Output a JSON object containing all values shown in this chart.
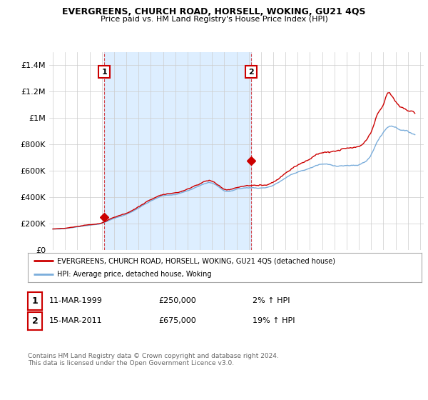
{
  "title": "EVERGREENS, CHURCH ROAD, HORSELL, WOKING, GU21 4QS",
  "subtitle": "Price paid vs. HM Land Registry's House Price Index (HPI)",
  "legend_line1": "EVERGREENS, CHURCH ROAD, HORSELL, WOKING, GU21 4QS (detached house)",
  "legend_line2": "HPI: Average price, detached house, Woking",
  "annotation1_date": "11-MAR-1999",
  "annotation1_price": "£250,000",
  "annotation1_hpi": "2% ↑ HPI",
  "annotation2_date": "15-MAR-2011",
  "annotation2_price": "£675,000",
  "annotation2_hpi": "19% ↑ HPI",
  "footer": "Contains HM Land Registry data © Crown copyright and database right 2024.\nThis data is licensed under the Open Government Licence v3.0.",
  "red_color": "#cc0000",
  "blue_color": "#7aaddb",
  "shade_color": "#ddeeff",
  "grid_color": "#cccccc",
  "background_color": "#ffffff",
  "plot_bg_color": "#ffffff",
  "ylim": [
    0,
    1500000
  ],
  "yticks": [
    0,
    200000,
    400000,
    600000,
    800000,
    1000000,
    1200000,
    1400000
  ],
  "ytick_labels": [
    "£0",
    "£200K",
    "£400K",
    "£600K",
    "£800K",
    "£1M",
    "£1.2M",
    "£1.4M"
  ],
  "sale1_x": 1999.2,
  "sale1_y": 250000,
  "sale2_x": 2011.2,
  "sale2_y": 675000,
  "xticks": [
    1995,
    1996,
    1997,
    1998,
    1999,
    2000,
    2001,
    2002,
    2003,
    2004,
    2005,
    2006,
    2007,
    2008,
    2009,
    2010,
    2011,
    2012,
    2013,
    2014,
    2015,
    2016,
    2017,
    2018,
    2019,
    2020,
    2021,
    2022,
    2023,
    2024,
    2025
  ]
}
